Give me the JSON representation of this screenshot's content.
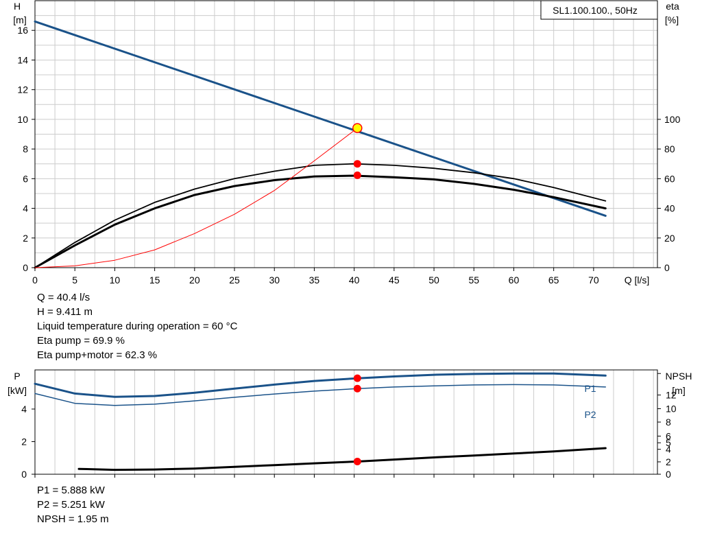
{
  "colors": {
    "blue": "#1a5289",
    "black": "#000000",
    "red": "#ff0000",
    "marker_yellow": "#ffff00",
    "grid": "#cccccc"
  },
  "chart_data": [
    {
      "type": "line",
      "legend_box": "SL1.100.100., 50Hz",
      "xlabel": "Q [l/s]",
      "ylabel_left": {
        "line1": "H",
        "line2": "[m]"
      },
      "ylabel_right": {
        "line1": "eta",
        "line2": "[%]"
      },
      "xlim": [
        0,
        78
      ],
      "ylim_left": [
        0,
        18
      ],
      "ylim_right": [
        0,
        100
      ],
      "xticks": [
        0,
        5,
        10,
        15,
        20,
        25,
        30,
        35,
        40,
        45,
        50,
        55,
        60,
        65,
        70
      ],
      "yticks_left": [
        0,
        2,
        4,
        6,
        8,
        10,
        12,
        14,
        16
      ],
      "yticks_right": [
        0,
        20,
        40,
        60,
        80,
        100
      ],
      "grid": true,
      "series": [
        {
          "axis": "left",
          "color": "blue",
          "width": 3,
          "x": [
            0,
            71.5
          ],
          "y": [
            16.6,
            3.5
          ]
        },
        {
          "axis": "left",
          "color": "black",
          "width": 1.8,
          "x": [
            0,
            5,
            10,
            15,
            20,
            25,
            30,
            35,
            40,
            45,
            50,
            55,
            60,
            65,
            71.5
          ],
          "y": [
            0,
            1.7,
            3.2,
            4.4,
            5.3,
            6.0,
            6.5,
            6.9,
            7.0,
            6.9,
            6.7,
            6.4,
            6.0,
            5.4,
            4.5
          ]
        },
        {
          "axis": "left",
          "color": "black",
          "width": 3,
          "x": [
            0,
            5,
            10,
            15,
            20,
            25,
            30,
            35,
            40,
            45,
            50,
            55,
            60,
            65,
            71.5
          ],
          "y": [
            0,
            1.5,
            2.9,
            4.0,
            4.9,
            5.5,
            5.9,
            6.15,
            6.2,
            6.1,
            5.95,
            5.65,
            5.25,
            4.75,
            4.0
          ]
        },
        {
          "axis": "left",
          "color": "red",
          "width": 1,
          "x": [
            0,
            5,
            10,
            15,
            20,
            25,
            30,
            35,
            40.4
          ],
          "y": [
            0,
            0.12,
            0.5,
            1.2,
            2.3,
            3.6,
            5.2,
            7.2,
            9.411
          ]
        }
      ],
      "markers": [
        {
          "x": 40.4,
          "y": 9.411,
          "fill": "marker_yellow"
        },
        {
          "x": 40.4,
          "y": 7.0,
          "fill": "red"
        },
        {
          "x": 40.4,
          "y": 6.23,
          "fill": "red"
        }
      ]
    },
    {
      "type": "line",
      "ylabel_left": {
        "line1": "P",
        "line2": "[kW]"
      },
      "ylabel_right": {
        "line1": "NPSH",
        "line2": "[m]"
      },
      "xlim": [
        0,
        78
      ],
      "ylim_left": [
        0,
        6.4
      ],
      "yticks_left": [
        0,
        2,
        4
      ],
      "yticks_right": [
        "0",
        "2",
        "4",
        "5",
        "6",
        "8",
        "10",
        "12"
      ],
      "npsh_tick_values": [
        0,
        2,
        4,
        5,
        6,
        8,
        10,
        12
      ],
      "npsh_axis_levels_kw": [
        0,
        0.76,
        1.53,
        1.93,
        2.34,
        3.2,
        4.02,
        4.86
      ],
      "series": [
        {
          "name": "P1",
          "color": "blue",
          "width": 3,
          "x": [
            0,
            5,
            10,
            15,
            20,
            25,
            30,
            35,
            40.4,
            45,
            50,
            55,
            60,
            65,
            71.5
          ],
          "y": [
            5.55,
            4.95,
            4.75,
            4.8,
            5.0,
            5.25,
            5.5,
            5.72,
            5.888,
            6.0,
            6.1,
            6.15,
            6.18,
            6.18,
            6.05
          ]
        },
        {
          "name": "P2",
          "color": "blue",
          "width": 1.5,
          "x": [
            0,
            5,
            10,
            15,
            20,
            25,
            30,
            35,
            40.4,
            45,
            50,
            55,
            60,
            65,
            71.5
          ],
          "y": [
            4.95,
            4.35,
            4.22,
            4.3,
            4.5,
            4.72,
            4.92,
            5.1,
            5.251,
            5.35,
            5.42,
            5.48,
            5.5,
            5.48,
            5.35
          ]
        },
        {
          "name": "NPSH",
          "color": "black",
          "width": 3,
          "axis": "right",
          "x": [
            5.5,
            10,
            15,
            20,
            25,
            30,
            35,
            40.4,
            45,
            50,
            55,
            60,
            65,
            71.5
          ],
          "y": [
            0.33,
            0.27,
            0.29,
            0.35,
            0.45,
            0.56,
            0.67,
            0.78,
            0.9,
            1.03,
            1.15,
            1.27,
            1.4,
            1.6
          ]
        }
      ],
      "markers": [
        {
          "x": 40.4,
          "y": 5.888,
          "fill": "red"
        },
        {
          "x": 40.4,
          "y": 5.251,
          "fill": "red"
        },
        {
          "x": 40.4,
          "y": 0.78,
          "fill": "red"
        }
      ]
    }
  ],
  "top_info": [
    "Q = 40.4 l/s",
    "H = 9.411 m",
    "Liquid temperature during operation = 60 °C",
    "Eta pump = 69.9 %",
    "Eta pump+motor = 62.3 %"
  ],
  "bottom_info": [
    "P1 = 5.888 kW",
    "P2 = 5.251 kW",
    "NPSH = 1.95 m"
  ]
}
